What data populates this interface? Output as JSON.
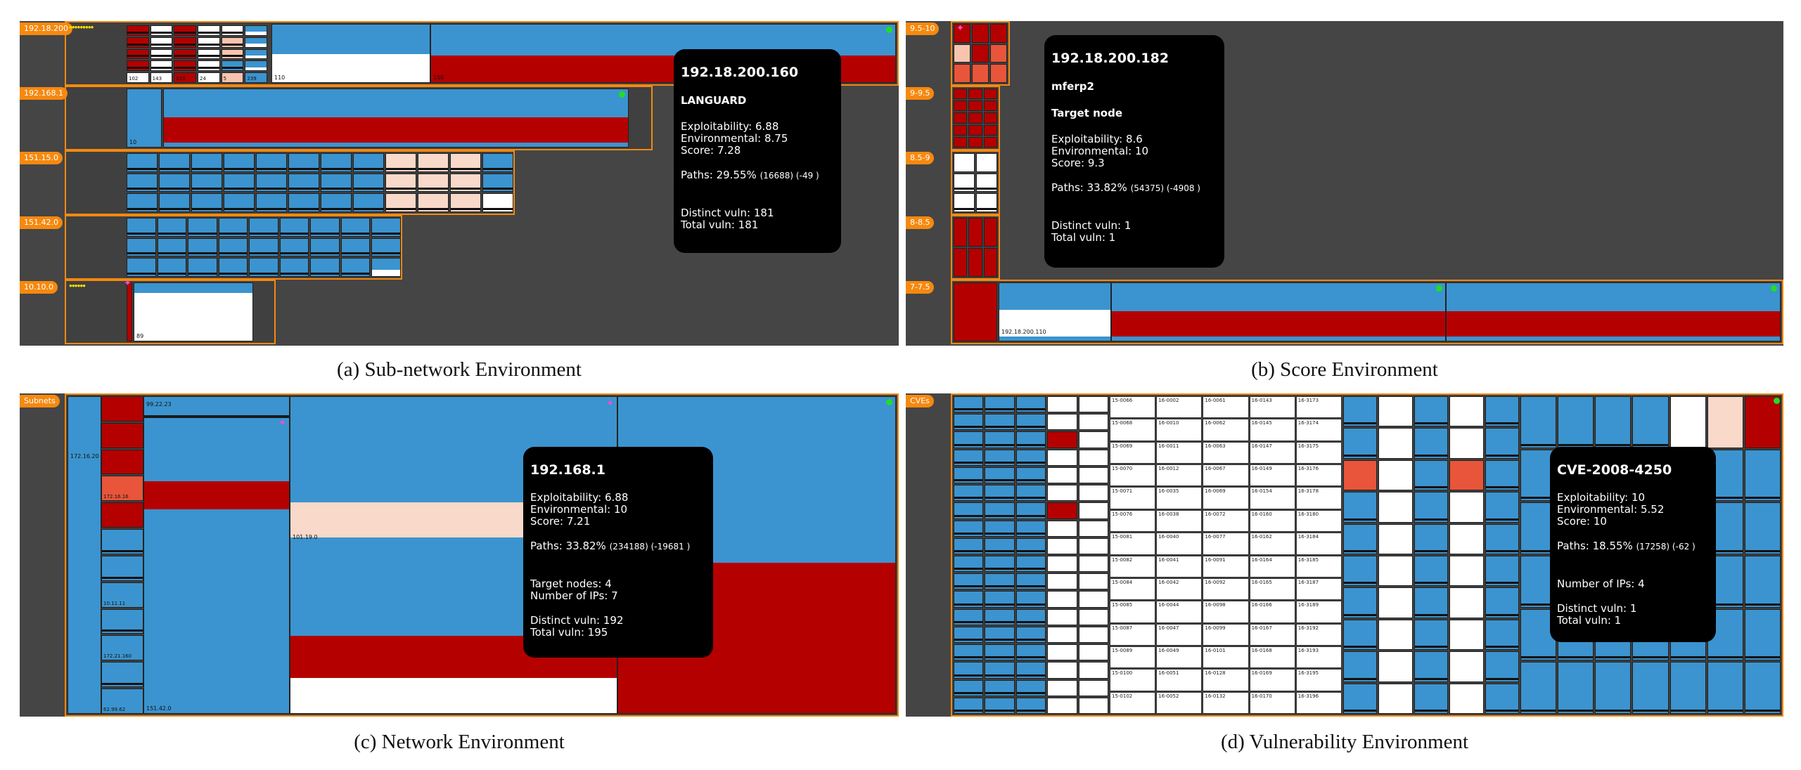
{
  "panels": {
    "a": {
      "caption": "(a) Sub-network Environment",
      "rows": [
        "192.18.200",
        "192.168.1",
        "151.15.0",
        "151.42.0",
        "10.10.0"
      ],
      "block_labels": [
        "102",
        "143",
        "210",
        "24",
        "5",
        "239",
        "110",
        "150",
        "10",
        "89"
      ],
      "tooltip": {
        "title": "192.18.200.160",
        "subtitle": "LANGUARD",
        "exploitability": "Exploitability: 6.88",
        "environmental": "Environmental: 8.75",
        "score": "Score: 7.28",
        "paths_main": "Paths: 29.55%",
        "paths_detail": "(16688) (-49 )",
        "distinct": "Distinct vuln: 181",
        "total": "Total vuln: 181"
      }
    },
    "b": {
      "caption": "(b) Score Environment",
      "rows": [
        "9.5-10",
        "9-9.5",
        "8.5-9",
        "8-8.5",
        "7-7.5"
      ],
      "block_labels": [
        "192.18.200.110"
      ],
      "tooltip": {
        "title": "192.18.200.182",
        "subtitle": "mferp2",
        "subtitle2": "Target node",
        "exploitability": "Exploitability: 8.6",
        "environmental": "Environmental: 10",
        "score": "Score: 9.3",
        "paths_main": "Paths: 33.82%",
        "paths_detail": "(54375) (-4908 )",
        "distinct": "Distinct vuln: 1",
        "total": "Total vuln: 1"
      }
    },
    "c": {
      "caption": "(c) Network Environment",
      "rows": [
        "Subnets"
      ],
      "block_labels": [
        "172.16.20",
        "172.16.16",
        "99.22.23",
        "10.11.11",
        "172.21.160",
        "62.99.62",
        "151.42.0",
        "101.19.0"
      ],
      "tooltip": {
        "title": "192.168.1",
        "exploitability": "Exploitability: 6.88",
        "environmental": "Environmental: 10",
        "score": "Score: 7.21",
        "paths_main": "Paths: 33.82%",
        "paths_detail": "(234188) (-19681 )",
        "targets": "Target nodes: 4",
        "ips": "Number of IPs: 7",
        "distinct": "Distinct vuln: 192",
        "total": "Total vuln: 195"
      }
    },
    "d": {
      "caption": "(d) Vulnerability Environment",
      "rows": [
        "CVEs"
      ],
      "cve_cols": [
        [
          "15-0066",
          "15-0068",
          "15-0069",
          "15-0070",
          "15-0071",
          "15-0076",
          "15-0081",
          "15-0082",
          "15-0084",
          "15-0085",
          "15-0087",
          "15-0089",
          "15-0100",
          "15-0102"
        ],
        [
          "16-0002",
          "16-0010",
          "16-0011",
          "16-0012",
          "16-0035",
          "16-0038",
          "16-0040",
          "16-0041",
          "16-0042",
          "16-0044",
          "16-0047",
          "16-0049",
          "16-0051",
          "16-0052"
        ],
        [
          "16-0061",
          "16-0062",
          "16-0063",
          "16-0067",
          "16-0069",
          "16-0072",
          "16-0077",
          "16-0091",
          "16-0092",
          "16-0098",
          "16-0099",
          "16-0101",
          "16-0128",
          "16-0132"
        ],
        [
          "16-0143",
          "16-0145",
          "16-0147",
          "16-0149",
          "16-0154",
          "16-0160",
          "16-0162",
          "16-0164",
          "16-0165",
          "16-0166",
          "16-0167",
          "16-0168",
          "16-0169",
          "16-0170"
        ],
        [
          "16-3173",
          "16-3174",
          "16-3175",
          "16-3176",
          "16-3178",
          "16-3180",
          "16-3184",
          "16-3185",
          "16-3187",
          "16-3189",
          "16-3192",
          "16-3193",
          "16-3195",
          "16-3196"
        ]
      ],
      "tooltip": {
        "title": "CVE-2008-4250",
        "exploitability": "Exploitability: 10",
        "environmental": "Environmental: 5.52",
        "score": "Score: 10",
        "paths_main": "Paths: 18.55%",
        "paths_detail": "(17258) (-62 )",
        "ips": "Number of IPs: 4",
        "distinct": "Distinct vuln: 1",
        "total": "Total vuln: 1"
      }
    }
  },
  "colors": {
    "orange": "#f6890f",
    "blue": "#3b94cf",
    "red": "#b50000",
    "panel_bg": "#454545",
    "tooltip_bg": "#000000"
  }
}
